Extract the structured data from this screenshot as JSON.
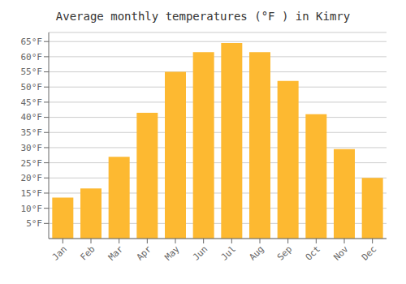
{
  "chart_data": {
    "type": "bar",
    "title": "Average monthly temperatures (°F ) in Kimry",
    "categories": [
      "Jan",
      "Feb",
      "Mar",
      "Apr",
      "May",
      "Jun",
      "Jul",
      "Aug",
      "Sep",
      "Oct",
      "Nov",
      "Dec"
    ],
    "values": [
      13.5,
      16.5,
      27.0,
      41.5,
      55.0,
      61.5,
      64.5,
      61.5,
      52.0,
      41.0,
      29.5,
      20.0
    ],
    "color": "#FDB931",
    "ylim": [
      0,
      68
    ],
    "yticks": [
      {
        "value": 5,
        "label": "5°F"
      },
      {
        "value": 10,
        "label": "10°F"
      },
      {
        "value": 15,
        "label": "15°F"
      },
      {
        "value": 20,
        "label": "20°F"
      },
      {
        "value": 25,
        "label": "25°F"
      },
      {
        "value": 30,
        "label": "30°F"
      },
      {
        "value": 35,
        "label": "35°F"
      },
      {
        "value": 40,
        "label": "40°F"
      },
      {
        "value": 45,
        "label": "45°F"
      },
      {
        "value": 50,
        "label": "50°F"
      },
      {
        "value": 55,
        "label": "55°F"
      },
      {
        "value": 60,
        "label": "60°F"
      },
      {
        "value": 65,
        "label": "65°F"
      }
    ],
    "grid": true
  }
}
